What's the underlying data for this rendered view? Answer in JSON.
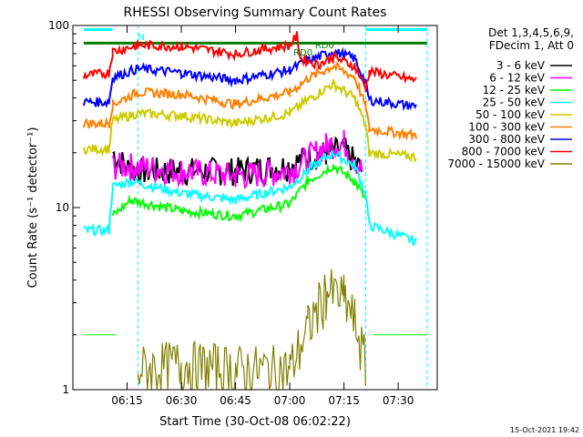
{
  "chart_data": {
    "type": "line",
    "title": "RHESSI Observing Summary Count Rates",
    "xlabel": "Start Time (30-Oct-08 06:02:22)",
    "ylabel": "Count Rate (s⁻¹ detector⁻¹)",
    "yscale": "log",
    "ylim": [
      1,
      100
    ],
    "xlim_minutes": [
      6.0,
      7.68
    ],
    "x_ticks": [
      "06:15",
      "06:30",
      "06:45",
      "07:00",
      "07:15",
      "07:30"
    ],
    "y_ticks": [
      "1",
      "10",
      "100"
    ],
    "legend_header": [
      "Det 1,3,4,5,6,9,",
      "FDecim 1, Att 0"
    ],
    "legend_position": "right",
    "timestamp": "15-Oct-2021 19:42",
    "annotations": [
      {
        "text": "N",
        "x": "06:18",
        "color": "#00ffff"
      },
      {
        "text": "RD0",
        "x": "07:07",
        "color": "#008000"
      },
      {
        "text": "RD0",
        "x": "07:01",
        "color": "#008000"
      }
    ],
    "series": [
      {
        "name": "3 - 6 keV",
        "color": "#000000",
        "points": [
          [
            "06:11",
            20
          ],
          [
            "06:16",
            16
          ],
          [
            "06:30",
            16
          ],
          [
            "06:45",
            16
          ],
          [
            "07:00",
            17
          ],
          [
            "07:05",
            19
          ],
          [
            "07:10",
            20
          ],
          [
            "07:15",
            21
          ],
          [
            "07:20",
            16
          ]
        ]
      },
      {
        "name": "6 - 12 keV",
        "color": "#ff00ff",
        "points": [
          [
            "06:11",
            17
          ],
          [
            "06:16",
            17
          ],
          [
            "06:30",
            16
          ],
          [
            "06:45",
            15
          ],
          [
            "07:00",
            16
          ],
          [
            "07:10",
            22
          ],
          [
            "07:15",
            23
          ],
          [
            "07:20",
            16
          ]
        ]
      },
      {
        "name": "12 - 25 keV",
        "color": "#00ff00",
        "points": [
          [
            "06:11",
            9
          ],
          [
            "06:16",
            11
          ],
          [
            "06:30",
            9.6
          ],
          [
            "06:45",
            9
          ],
          [
            "07:00",
            10.5
          ],
          [
            "07:05",
            14
          ],
          [
            "07:12",
            17
          ],
          [
            "07:18",
            14
          ],
          [
            "07:21",
            11
          ]
        ]
      },
      {
        "name": "25 - 50 keV",
        "color": "#00ffff",
        "points": [
          [
            "06:03",
            7.5
          ],
          [
            "06:10",
            7.5
          ],
          [
            "06:11",
            13
          ],
          [
            "06:16",
            14
          ],
          [
            "06:30",
            12
          ],
          [
            "06:45",
            11
          ],
          [
            "07:00",
            13
          ],
          [
            "07:05",
            16
          ],
          [
            "07:12",
            20
          ],
          [
            "07:18",
            17
          ],
          [
            "07:21",
            12
          ],
          [
            "07:22",
            8
          ],
          [
            "07:35",
            6.5
          ]
        ]
      },
      {
        "name": "50 - 100 keV",
        "color": "#cccc00",
        "points": [
          [
            "06:03",
            21
          ],
          [
            "06:10",
            21
          ],
          [
            "06:11",
            30
          ],
          [
            "06:18",
            33
          ],
          [
            "06:30",
            32
          ],
          [
            "06:45",
            29
          ],
          [
            "07:00",
            33
          ],
          [
            "07:05",
            39
          ],
          [
            "07:12",
            48
          ],
          [
            "07:18",
            40
          ],
          [
            "07:21",
            28
          ],
          [
            "07:22",
            20
          ],
          [
            "07:35",
            19
          ]
        ]
      },
      {
        "name": "100 - 300 keV",
        "color": "#ff8000",
        "points": [
          [
            "06:03",
            29
          ],
          [
            "06:10",
            29
          ],
          [
            "06:11",
            37
          ],
          [
            "06:18",
            43
          ],
          [
            "06:30",
            42
          ],
          [
            "06:45",
            37
          ],
          [
            "07:00",
            43
          ],
          [
            "07:05",
            51
          ],
          [
            "07:12",
            60
          ],
          [
            "07:18",
            52
          ],
          [
            "07:21",
            36
          ],
          [
            "07:22",
            27
          ],
          [
            "07:35",
            25
          ]
        ]
      },
      {
        "name": "300 - 800 keV",
        "color": "#0000ff",
        "points": [
          [
            "06:03",
            38
          ],
          [
            "06:10",
            38
          ],
          [
            "06:11",
            52
          ],
          [
            "06:18",
            58
          ],
          [
            "06:30",
            55
          ],
          [
            "06:45",
            50
          ],
          [
            "07:00",
            57
          ],
          [
            "07:05",
            64
          ],
          [
            "07:12",
            72
          ],
          [
            "07:18",
            66
          ],
          [
            "07:21",
            48
          ],
          [
            "07:22",
            39
          ],
          [
            "07:35",
            36
          ]
        ]
      },
      {
        "name": "800 - 7000 keV",
        "color": "#ff0000",
        "points": [
          [
            "06:03",
            53
          ],
          [
            "06:10",
            55
          ],
          [
            "06:11",
            72
          ],
          [
            "06:18",
            78
          ],
          [
            "06:30",
            77
          ],
          [
            "06:45",
            70
          ],
          [
            "07:00",
            78
          ],
          [
            "07:02",
            88
          ],
          [
            "07:03",
            66
          ],
          [
            "07:08",
            61
          ],
          [
            "07:12",
            67
          ],
          [
            "07:18",
            60
          ],
          [
            "07:21",
            45
          ],
          [
            "07:22",
            56
          ],
          [
            "07:35",
            50
          ]
        ]
      },
      {
        "name": "7000 - 15000 keV",
        "color": "#808000",
        "points": [
          [
            "06:18",
            1.3
          ],
          [
            "06:30",
            1.4
          ],
          [
            "06:45",
            1.3
          ],
          [
            "07:00",
            1.3
          ],
          [
            "07:05",
            2.2
          ],
          [
            "07:10",
            3.5
          ],
          [
            "07:15",
            3.2
          ],
          [
            "07:18",
            2.4
          ],
          [
            "07:21",
            1.4
          ]
        ]
      }
    ],
    "background_bands": [
      {
        "label": "cyan",
        "color": "#00ffff",
        "y": 95,
        "from": "06:03",
        "to": "06:11"
      },
      {
        "label": "cyan",
        "color": "#00ffff",
        "y": 95,
        "from": "07:21",
        "to": "07:38"
      },
      {
        "label": "green",
        "color": "#008000",
        "y": 80,
        "from": "06:03",
        "to": "07:21"
      },
      {
        "label": "green",
        "color": "#008000",
        "y": 80,
        "from": "07:21",
        "to": "07:38"
      },
      {
        "label": "green low",
        "color": "#00ff00",
        "y": 2,
        "from": "06:03",
        "to": "06:12"
      },
      {
        "label": "green low",
        "color": "#00ff00",
        "y": 2,
        "from": "07:23",
        "to": "07:38"
      }
    ]
  }
}
